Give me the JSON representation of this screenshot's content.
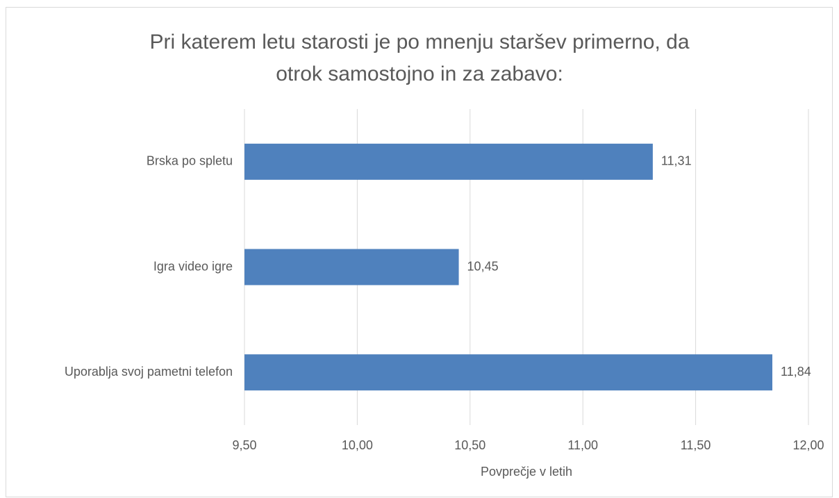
{
  "chart_data": {
    "type": "bar",
    "orientation": "horizontal",
    "title": [
      "Pri katerem letu starosti je po mnenju staršev primerno, da",
      "otrok samostojno in za zabavo:"
    ],
    "categories": [
      "Brska po spletu",
      "Igra video igre",
      "Uporablja svoj pametni telefon"
    ],
    "values": [
      11.31,
      10.45,
      11.84
    ],
    "value_labels": [
      "11,31",
      "10,45",
      "11,84"
    ],
    "color": "#4f81bd",
    "xlabel": "Povprečje v letih",
    "xlim": [
      9.5,
      12
    ],
    "xticks": [
      {
        "value": 9.5,
        "label": "9,50"
      },
      {
        "value": 10,
        "label": "10,00"
      },
      {
        "value": 10.5,
        "label": "10,50"
      },
      {
        "value": 11,
        "label": "11,00"
      },
      {
        "value": 11.5,
        "label": "11,50"
      },
      {
        "value": 12,
        "label": "12,00"
      }
    ],
    "grid": true
  }
}
